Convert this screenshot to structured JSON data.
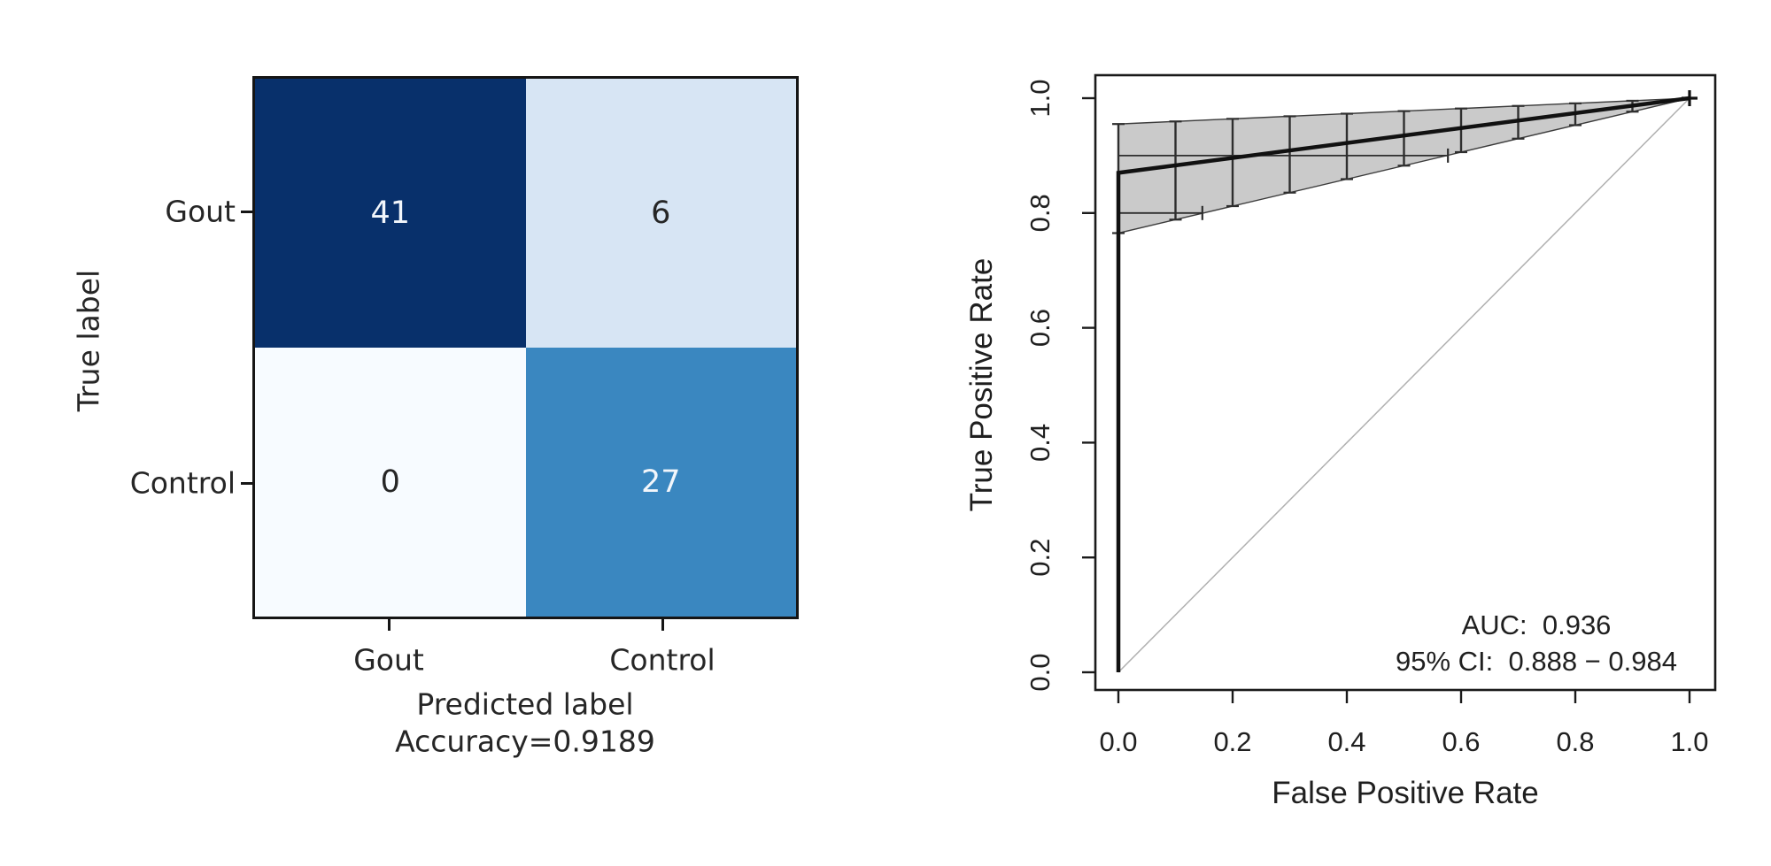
{
  "chart_data": [
    {
      "type": "heatmap",
      "name": "confusion-matrix",
      "ylabel": "True label",
      "xlabel": "Predicted label",
      "caption": "Accuracy=0.9189",
      "row_labels": [
        "Gout",
        "Control"
      ],
      "col_labels": [
        "Gout",
        "Control"
      ],
      "values": [
        [
          41,
          6
        ],
        [
          0,
          27
        ]
      ],
      "rows": [
        {
          "cells": [
            {
              "value": "41",
              "bg": "#08306b",
              "fg": "#f2f6fb"
            },
            {
              "value": "6",
              "bg": "#d7e5f4",
              "fg": "#262626"
            }
          ]
        },
        {
          "cells": [
            {
              "value": "0",
              "bg": "#f7fbff",
              "fg": "#262626"
            },
            {
              "value": "27",
              "bg": "#3a87c0",
              "fg": "#f2f6fb"
            }
          ]
        }
      ]
    },
    {
      "type": "line",
      "name": "roc-curve",
      "xlabel": "False Positive Rate",
      "ylabel": "True Positive Rate",
      "xlim": [
        0,
        1
      ],
      "ylim": [
        0,
        1
      ],
      "xticks": [
        "0.0",
        "0.2",
        "0.4",
        "0.6",
        "0.8",
        "1.0"
      ],
      "yticks": [
        "0.0",
        "0.2",
        "0.4",
        "0.6",
        "0.8",
        "1.0"
      ],
      "grid": false,
      "auc": 0.936,
      "ci_95": [
        0.888,
        0.984
      ],
      "annotations": {
        "auc_label": "AUC:  0.936",
        "ci_label": "95% CI:  0.888 − 0.984"
      },
      "series": [
        {
          "name": "roc",
          "points": [
            [
              0,
              0
            ],
            [
              0,
              0.87
            ],
            [
              1,
              1
            ]
          ],
          "color": "#111111"
        },
        {
          "name": "chance-diagonal",
          "points": [
            [
              0,
              0
            ],
            [
              1,
              1
            ]
          ],
          "color": "#b0b0b0"
        }
      ],
      "ci_band": {
        "fill": "#cacaca",
        "edge_color": "#3c3c3c",
        "lower_at_fpr0": 0.765,
        "upper_at_fpr0": 0.955,
        "apex": [
          1,
          1
        ]
      },
      "se_error_bars_at_fpr": [
        0,
        0.1,
        0.2,
        0.3,
        0.4,
        0.5,
        0.6,
        0.7,
        0.8,
        0.9,
        1.0
      ],
      "sp_error_bars": [
        {
          "tpr": 0.9,
          "fpr_from": 0,
          "fpr_to": 0.577
        },
        {
          "tpr": 0.8,
          "fpr_from": 0,
          "fpr_to": 0.147
        }
      ]
    }
  ]
}
